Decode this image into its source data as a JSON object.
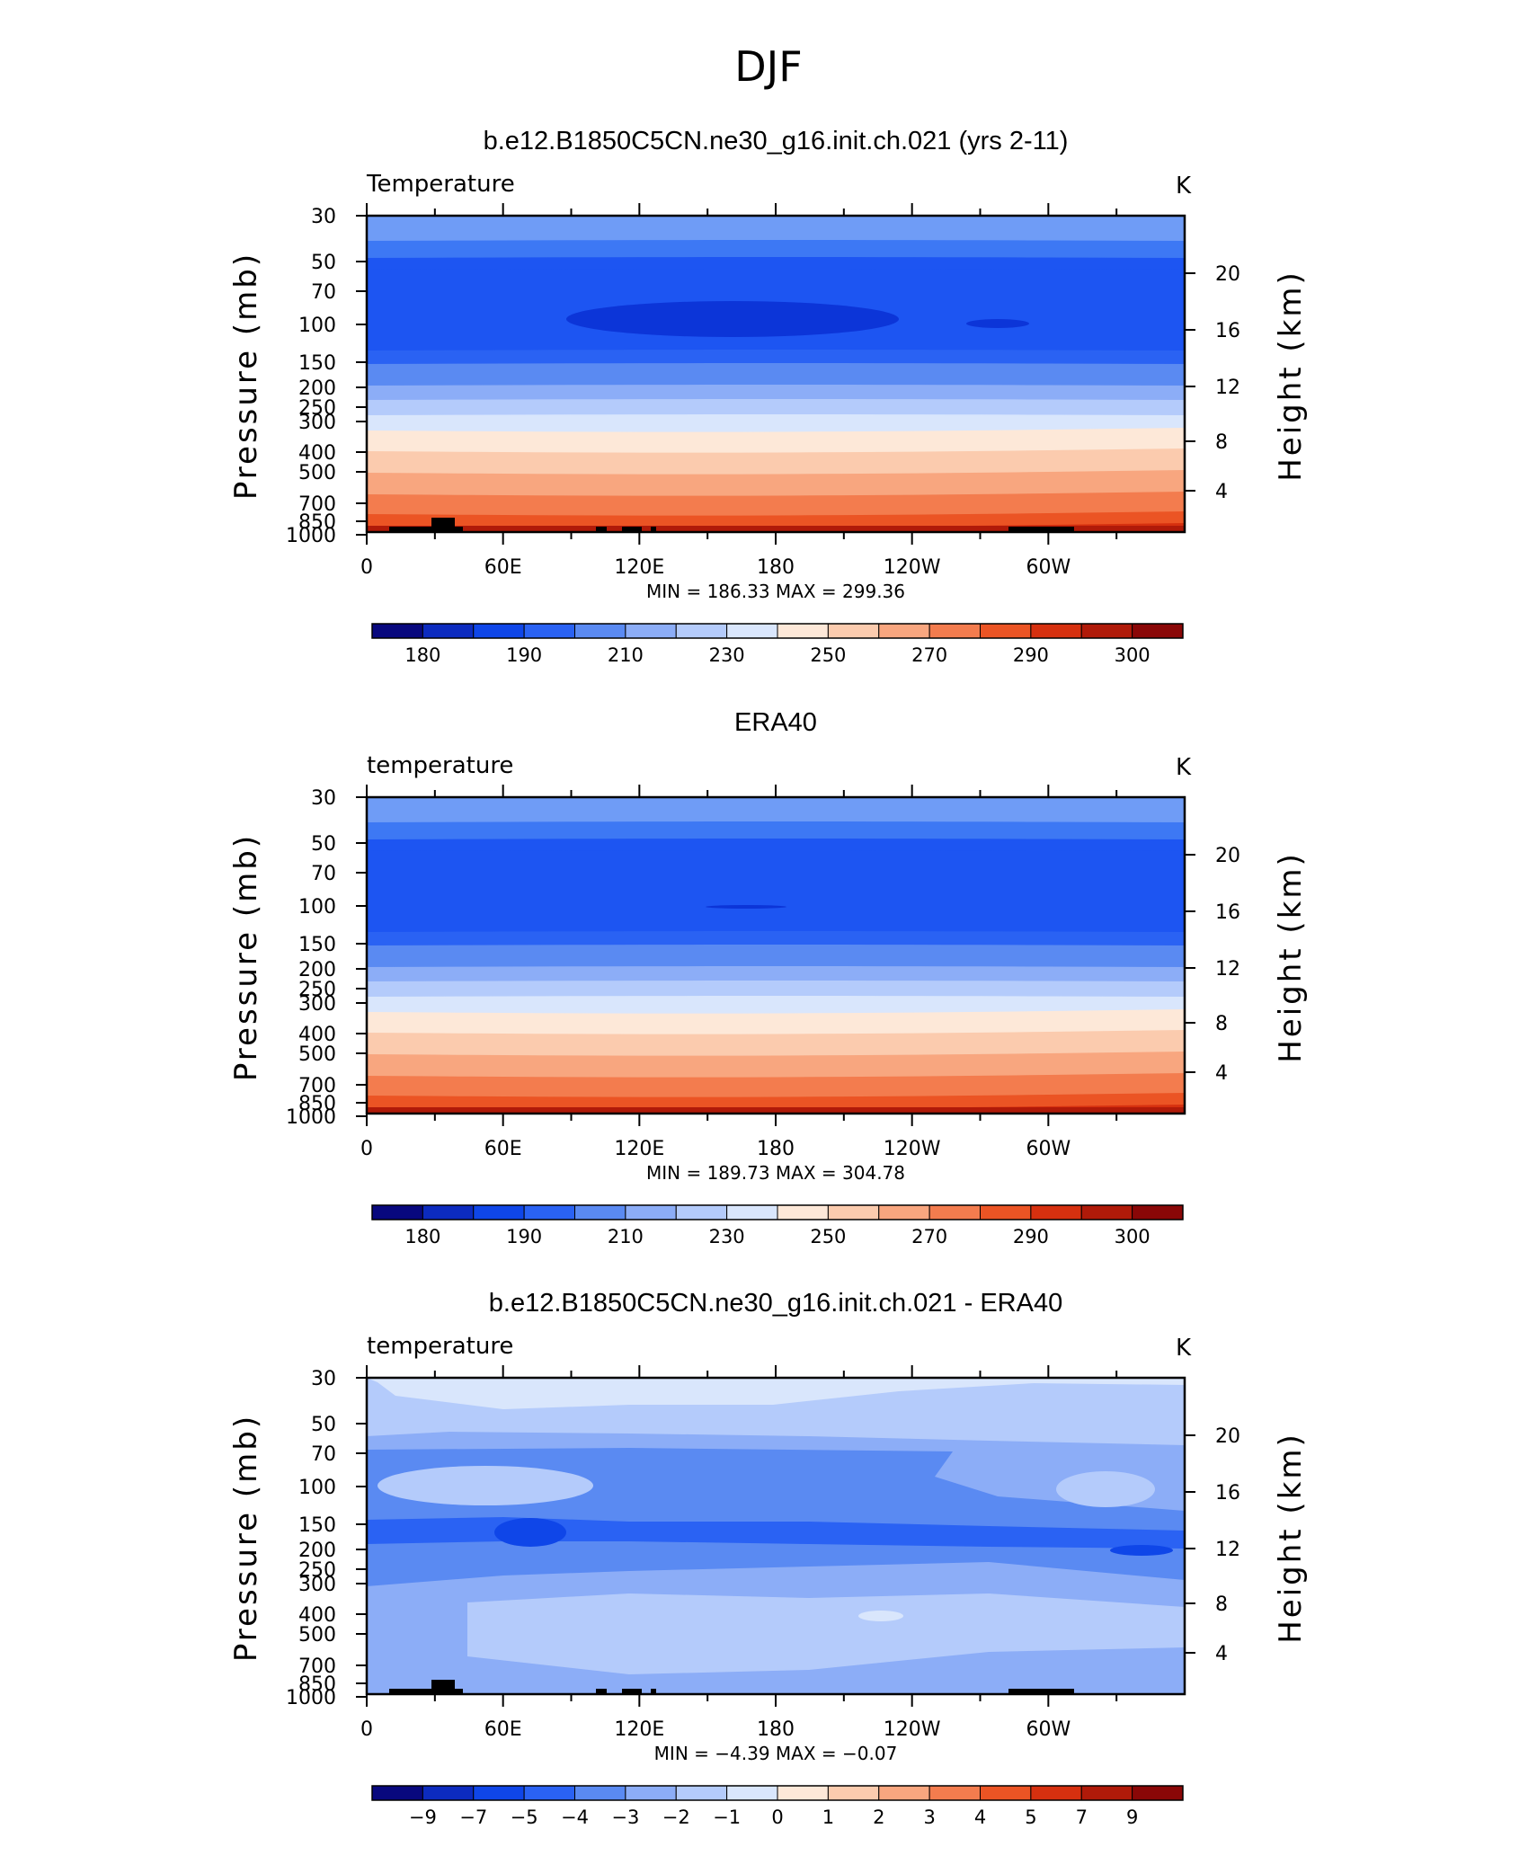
{
  "page": {
    "title": "DJF"
  },
  "chart_data": [
    {
      "type": "heatmap",
      "title": "b.e12.B1850C5CN.ne30_g16.init.ch.021 (yrs 2-11)",
      "left_label": "Temperature",
      "units": "K",
      "ylabel": "Pressure (mb)",
      "ylabel2": "Height (km)",
      "xticks": [
        "0",
        "60E",
        "120E",
        "180",
        "120W",
        "60W"
      ],
      "yticks": [
        "30",
        "50",
        "70",
        "100",
        "150",
        "200",
        "250",
        "300",
        "400",
        "500",
        "700",
        "850",
        "1000"
      ],
      "yticks2": [
        "20",
        "16",
        "12",
        "8",
        "4"
      ],
      "minmax": "MIN = 186.33   MAX = 299.36",
      "min": 186.33,
      "max": 299.36,
      "colorbar_labels": [
        "180",
        "190",
        "210",
        "230",
        "250",
        "270",
        "290",
        "300"
      ]
    },
    {
      "type": "heatmap",
      "title": "ERA40",
      "left_label": "temperature",
      "units": "K",
      "ylabel": "Pressure (mb)",
      "ylabel2": "Height (km)",
      "xticks": [
        "0",
        "60E",
        "120E",
        "180",
        "120W",
        "60W"
      ],
      "yticks": [
        "30",
        "50",
        "70",
        "100",
        "150",
        "200",
        "250",
        "300",
        "400",
        "500",
        "700",
        "850",
        "1000"
      ],
      "yticks2": [
        "20",
        "16",
        "12",
        "8",
        "4"
      ],
      "minmax": "MIN = 189.73   MAX = 304.78",
      "min": 189.73,
      "max": 304.78,
      "colorbar_labels": [
        "180",
        "190",
        "210",
        "230",
        "250",
        "270",
        "290",
        "300"
      ]
    },
    {
      "type": "heatmap",
      "title": "b.e12.B1850C5CN.ne30_g16.init.ch.021 - ERA40",
      "left_label": "temperature",
      "units": "K",
      "ylabel": "Pressure (mb)",
      "ylabel2": "Height (km)",
      "xticks": [
        "0",
        "60E",
        "120E",
        "180",
        "120W",
        "60W"
      ],
      "yticks": [
        "30",
        "50",
        "70",
        "100",
        "150",
        "200",
        "250",
        "300",
        "400",
        "500",
        "700",
        "850",
        "1000"
      ],
      "yticks2": [
        "20",
        "16",
        "12",
        "8",
        "4"
      ],
      "minmax": "MIN = −4.39   MAX = −0.07",
      "min": -4.39,
      "max": -0.07,
      "colorbar_labels": [
        "−9",
        "−7",
        "−5",
        "−4",
        "−3",
        "−2",
        "−1",
        "0",
        "1",
        "2",
        "3",
        "4",
        "5",
        "7",
        "9"
      ]
    }
  ],
  "colorbar_colors": [
    "#08087e",
    "#0c2bbf",
    "#0f46e8",
    "#2a62f3",
    "#5a8af2",
    "#8cadf7",
    "#b4cbfb",
    "#d9e6fc",
    "#fde8d8",
    "#fbcbae",
    "#f8a67f",
    "#f37c4e",
    "#eb5424",
    "#d6300f",
    "#b01a09",
    "#8a0707"
  ],
  "temp_bands": [
    "#6f9cf6",
    "#3d78f4",
    "#1d55f2",
    "#1d55f2",
    "#2a62f3",
    "#5a8af2",
    "#8cadf7",
    "#b4cbfb",
    "#d9e6fc",
    "#fde8d8",
    "#fbcbae",
    "#f8a67f",
    "#f37c4e",
    "#eb5424",
    "#d6300f"
  ],
  "diff_colors": [
    "#d9e6fc",
    "#b4cbfb",
    "#8cadf7",
    "#5a8af2",
    "#2a62f3",
    "#0f46e8"
  ]
}
